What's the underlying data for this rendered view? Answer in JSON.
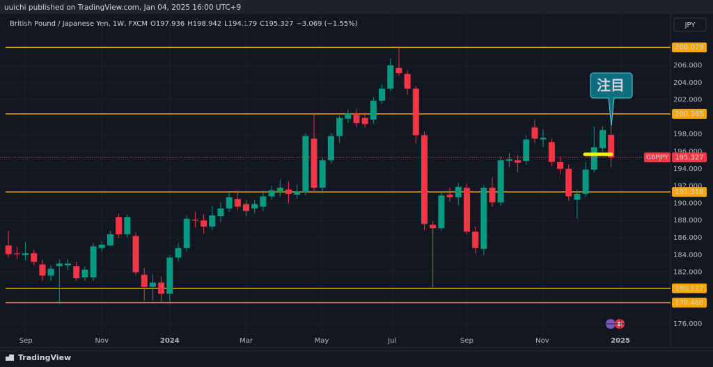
{
  "header": {
    "published_by": "uuichi published on TradingView.com, Jan 04, 2025 16:00 UTC+9",
    "currency": "JPY",
    "footer": "TradingView"
  },
  "chart_data": {
    "type": "candlestick",
    "title": "British Pound / Japanese Yen, 1W, FXCM",
    "ohlc_labels": [
      "O",
      "H",
      "L",
      "C"
    ],
    "change": "−3.069 (−1.55%)",
    "up_color": "#089981",
    "down_color": "#f23645",
    "level_color": "#f7a600",
    "ohlc": [
      [
        185.1,
        186.8,
        183.7,
        184.1
      ],
      [
        184.2,
        185.0,
        183.5,
        184.1
      ],
      [
        184.0,
        185.5,
        183.4,
        184.2
      ],
      [
        184.2,
        184.6,
        182.8,
        183.2
      ],
      [
        182.9,
        183.5,
        181.0,
        181.6
      ],
      [
        181.6,
        182.8,
        181.0,
        182.4
      ],
      [
        182.7,
        183.5,
        178.3,
        183.0
      ],
      [
        182.8,
        183.5,
        182.2,
        183.0
      ],
      [
        182.7,
        183.2,
        181.0,
        181.3
      ],
      [
        181.4,
        182.7,
        181.0,
        182.3
      ],
      [
        181.4,
        185.4,
        181.0,
        185.0
      ],
      [
        184.8,
        185.6,
        184.4,
        185.2
      ],
      [
        185.1,
        186.8,
        185.0,
        186.4
      ],
      [
        188.4,
        188.8,
        186.0,
        186.4
      ],
      [
        186.4,
        188.7,
        186.0,
        188.4
      ],
      [
        186.2,
        186.6,
        181.6,
        182.0
      ],
      [
        181.7,
        182.5,
        178.7,
        180.3
      ],
      [
        180.3,
        181.8,
        178.7,
        180.8
      ],
      [
        180.8,
        181.5,
        178.6,
        179.5
      ],
      [
        179.5,
        184.0,
        178.6,
        183.7
      ],
      [
        183.7,
        185.4,
        183.2,
        184.8
      ],
      [
        184.8,
        188.6,
        184.4,
        188.2
      ],
      [
        188.1,
        189.0,
        187.2,
        188.0
      ],
      [
        188.0,
        188.7,
        186.5,
        187.3
      ],
      [
        187.3,
        189.7,
        186.9,
        188.6
      ],
      [
        188.5,
        190.1,
        187.8,
        189.4
      ],
      [
        189.4,
        191.3,
        189.0,
        190.7
      ],
      [
        190.5,
        191.5,
        189.2,
        189.6
      ],
      [
        189.9,
        190.4,
        188.5,
        189.1
      ],
      [
        189.4,
        190.4,
        188.8,
        189.9
      ],
      [
        189.6,
        191.5,
        189.1,
        190.8
      ],
      [
        190.8,
        192.0,
        190.4,
        191.5
      ],
      [
        191.3,
        192.7,
        190.8,
        191.8
      ],
      [
        191.6,
        192.5,
        190.0,
        191.1
      ],
      [
        191.0,
        192.2,
        190.5,
        191.4
      ],
      [
        191.3,
        198.1,
        190.9,
        197.8
      ],
      [
        197.5,
        200.4,
        191.3,
        191.8
      ],
      [
        191.8,
        195.3,
        191.2,
        195.0
      ],
      [
        195.0,
        198.2,
        194.6,
        197.8
      ],
      [
        197.8,
        200.2,
        197.0,
        199.9
      ],
      [
        199.8,
        200.9,
        199.3,
        200.4
      ],
      [
        200.4,
        201.0,
        198.8,
        199.3
      ],
      [
        199.9,
        200.5,
        198.8,
        199.2
      ],
      [
        199.7,
        202.3,
        199.2,
        201.9
      ],
      [
        201.9,
        203.8,
        201.5,
        203.3
      ],
      [
        203.3,
        206.8,
        203.0,
        206.0
      ],
      [
        205.7,
        208.079,
        204.8,
        205.1
      ],
      [
        205.0,
        205.4,
        202.6,
        203.3
      ],
      [
        203.3,
        203.6,
        196.9,
        197.9
      ],
      [
        197.9,
        198.3,
        186.9,
        187.6
      ],
      [
        187.5,
        187.9,
        180.127,
        187.1
      ],
      [
        187.1,
        191.2,
        186.8,
        190.9
      ],
      [
        191.0,
        191.8,
        190.2,
        190.7
      ],
      [
        190.7,
        192.4,
        189.8,
        191.9
      ],
      [
        191.8,
        192.3,
        186.4,
        186.7
      ],
      [
        186.7,
        187.3,
        184.2,
        184.8
      ],
      [
        184.7,
        192.1,
        184.0,
        191.8
      ],
      [
        191.8,
        193.0,
        189.6,
        190.1
      ],
      [
        190.1,
        195.4,
        189.7,
        195.0
      ],
      [
        194.9,
        195.8,
        194.2,
        195.1
      ],
      [
        195.0,
        195.6,
        193.6,
        194.7
      ],
      [
        194.9,
        197.9,
        194.5,
        197.4
      ],
      [
        198.8,
        199.7,
        197.0,
        197.5
      ],
      [
        197.4,
        198.6,
        196.5,
        197.6
      ],
      [
        197.1,
        197.5,
        194.3,
        194.8
      ],
      [
        194.8,
        195.4,
        193.4,
        194.0
      ],
      [
        194.0,
        194.5,
        190.3,
        190.8
      ],
      [
        190.4,
        191.6,
        188.2,
        191.1
      ],
      [
        191.1,
        194.8,
        190.8,
        193.9
      ],
      [
        193.9,
        198.9,
        193.6,
        196.5
      ],
      [
        196.4,
        198.9,
        196.0,
        198.5
      ],
      [
        197.936,
        198.942,
        194.179,
        195.327
      ]
    ],
    "xticks": [
      {
        "value": 2.05,
        "label": "Sep"
      },
      {
        "value": 11.0,
        "label": "Nov"
      },
      {
        "value": 19.0,
        "label": "2024",
        "bold": true
      },
      {
        "value": 28.0,
        "label": "Mar"
      },
      {
        "value": 36.9,
        "label": "May"
      },
      {
        "value": 45.2,
        "label": "Jul"
      },
      {
        "value": 54.0,
        "label": "Sep"
      },
      {
        "value": 62.9,
        "label": "Nov"
      },
      {
        "value": 72.1,
        "label": "2025",
        "bold": true
      }
    ],
    "xlim": [
      -1,
      78
    ],
    "ylim": [
      173.26,
      211.97
    ],
    "yticks": [
      {
        "value": 176,
        "label": "176.000"
      },
      {
        "value": 182,
        "label": "182.000"
      },
      {
        "value": 184,
        "label": "184.000"
      },
      {
        "value": 186,
        "label": "186.000"
      },
      {
        "value": 188,
        "label": "188.000"
      },
      {
        "value": 190,
        "label": "190.000"
      },
      {
        "value": 192,
        "label": "192.000"
      },
      {
        "value": 194,
        "label": "194.000"
      },
      {
        "value": 196,
        "label": "196.000"
      },
      {
        "value": 198,
        "label": "198.000"
      },
      {
        "value": 202,
        "label": "202.000"
      },
      {
        "value": 204,
        "label": "204.000"
      },
      {
        "value": 206,
        "label": "206.000"
      }
    ],
    "levels": [
      208.079,
      200.365,
      191.318,
      180.127,
      {
        "value": 178.46,
        "label": "178.460"
      }
    ],
    "last": {
      "name": "GBPJPY",
      "value": 195.327
    },
    "annotation": "注目"
  }
}
